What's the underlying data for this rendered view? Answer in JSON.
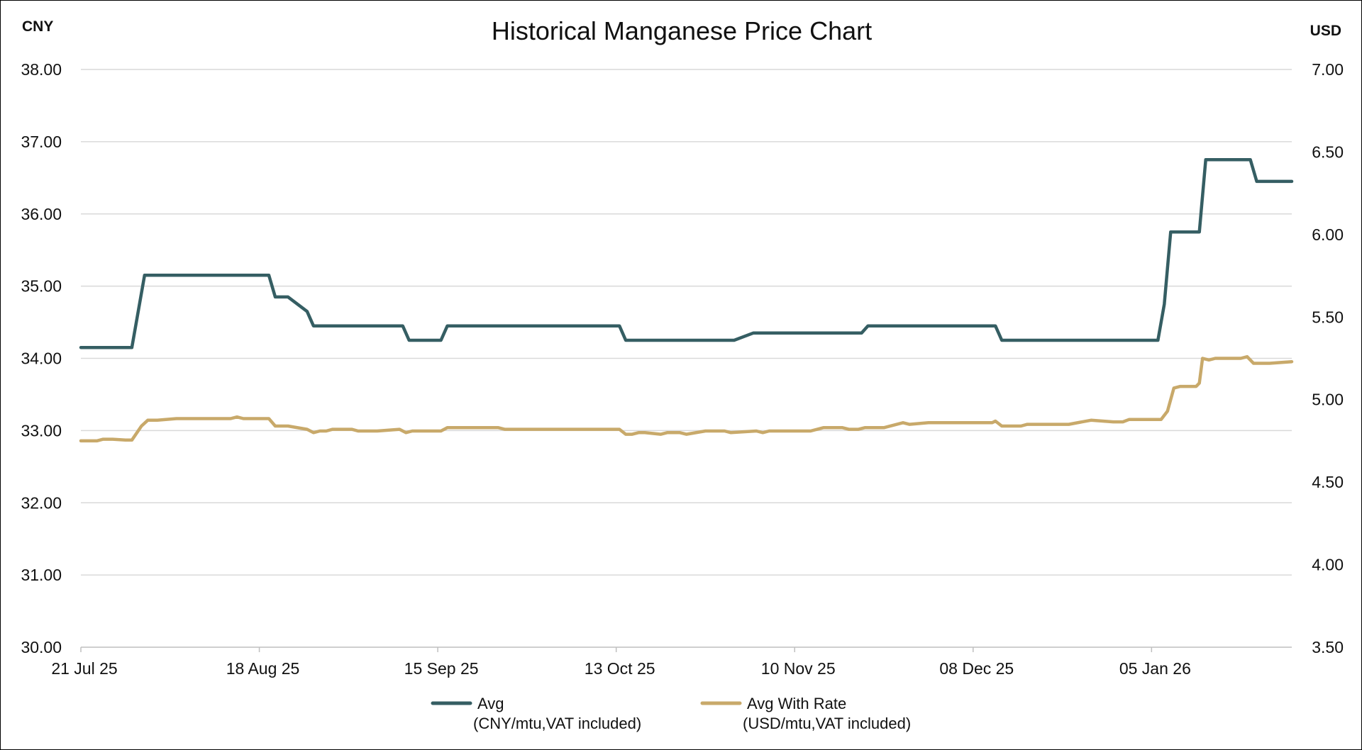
{
  "chart_data": {
    "type": "line",
    "title": "Historical Manganese Price Chart",
    "left_axis_label": "CNY",
    "right_axis_label": "USD",
    "left_ylim": [
      30.0,
      38.0
    ],
    "right_ylim": [
      3.5,
      7.0
    ],
    "left_ticks": [
      "30.00",
      "31.00",
      "32.00",
      "33.00",
      "34.00",
      "35.00",
      "36.00",
      "37.00",
      "38.00"
    ],
    "right_ticks": [
      "3.50",
      "4.00",
      "4.50",
      "5.00",
      "5.50",
      "6.00",
      "6.50",
      "7.00"
    ],
    "x_start_day": 0,
    "x_end_day": 190,
    "x_ticks": [
      {
        "day": 0,
        "label": "21 Jul 25"
      },
      {
        "day": 28,
        "label": "18 Aug 25"
      },
      {
        "day": 56,
        "label": "15 Sep 25"
      },
      {
        "day": 84,
        "label": "13 Oct 25"
      },
      {
        "day": 112,
        "label": "10 Nov 25"
      },
      {
        "day": 140,
        "label": "08 Dec 25"
      },
      {
        "day": 168,
        "label": "05 Jan 26"
      }
    ],
    "grid": true,
    "legend_position": "bottom",
    "series": [
      {
        "name": "Avg",
        "legend_line1": "Avg",
        "legend_line2": "(CNY/mtu,VAT included)",
        "axis": "left",
        "color": "#355e63",
        "points": [
          [
            0,
            34.15
          ],
          [
            8,
            34.15
          ],
          [
            10,
            35.15
          ],
          [
            29.5,
            35.15
          ],
          [
            30.5,
            34.85
          ],
          [
            32.5,
            34.85
          ],
          [
            35.5,
            34.65
          ],
          [
            36.5,
            34.45
          ],
          [
            50.5,
            34.45
          ],
          [
            51.5,
            34.25
          ],
          [
            56.5,
            34.25
          ],
          [
            57.5,
            34.45
          ],
          [
            84.5,
            34.45
          ],
          [
            85.5,
            34.25
          ],
          [
            102.5,
            34.25
          ],
          [
            105.5,
            34.35
          ],
          [
            122.5,
            34.35
          ],
          [
            123.5,
            34.45
          ],
          [
            143.5,
            34.45
          ],
          [
            144.5,
            34.25
          ],
          [
            169,
            34.25
          ],
          [
            170,
            34.75
          ],
          [
            171,
            35.75
          ],
          [
            175.5,
            35.75
          ],
          [
            176.5,
            36.75
          ],
          [
            183.5,
            36.75
          ],
          [
            184.5,
            36.45
          ],
          [
            190,
            36.45
          ]
        ]
      },
      {
        "name": "Avg With Rate",
        "legend_line1": "Avg With Rate",
        "legend_line2": "(USD/mtu,VAT included)",
        "axis": "right",
        "color": "#c8a96a",
        "points": [
          [
            0,
            4.75
          ],
          [
            2.5,
            4.75
          ],
          [
            3.5,
            4.76
          ],
          [
            5,
            4.76
          ],
          [
            7,
            4.755
          ],
          [
            8,
            4.755
          ],
          [
            9.5,
            4.84
          ],
          [
            10.5,
            4.875
          ],
          [
            12,
            4.875
          ],
          [
            15,
            4.885
          ],
          [
            23.5,
            4.885
          ],
          [
            24.5,
            4.895
          ],
          [
            25.5,
            4.885
          ],
          [
            29.5,
            4.885
          ],
          [
            30.5,
            4.84
          ],
          [
            32.5,
            4.84
          ],
          [
            35.5,
            4.82
          ],
          [
            36.5,
            4.8
          ],
          [
            37.5,
            4.81
          ],
          [
            38.5,
            4.81
          ],
          [
            39.5,
            4.82
          ],
          [
            42.5,
            4.82
          ],
          [
            43.5,
            4.81
          ],
          [
            46.5,
            4.81
          ],
          [
            50,
            4.82
          ],
          [
            51,
            4.8
          ],
          [
            52,
            4.81
          ],
          [
            56.5,
            4.81
          ],
          [
            57.5,
            4.83
          ],
          [
            65.5,
            4.83
          ],
          [
            66.5,
            4.82
          ],
          [
            84.5,
            4.82
          ],
          [
            85.5,
            4.79
          ],
          [
            86.5,
            4.79
          ],
          [
            87.5,
            4.8
          ],
          [
            88.5,
            4.8
          ],
          [
            91,
            4.79
          ],
          [
            92,
            4.8
          ],
          [
            94,
            4.8
          ],
          [
            95,
            4.79
          ],
          [
            98,
            4.81
          ],
          [
            101,
            4.81
          ],
          [
            102,
            4.8
          ],
          [
            106,
            4.81
          ],
          [
            107,
            4.8
          ],
          [
            108,
            4.81
          ],
          [
            114.5,
            4.81
          ],
          [
            116.5,
            4.83
          ],
          [
            119.5,
            4.83
          ],
          [
            120.5,
            4.82
          ],
          [
            122,
            4.82
          ],
          [
            123,
            4.83
          ],
          [
            126,
            4.83
          ],
          [
            129,
            4.86
          ],
          [
            130,
            4.85
          ],
          [
            133,
            4.86
          ],
          [
            143,
            4.86
          ],
          [
            143.5,
            4.87
          ],
          [
            144.5,
            4.84
          ],
          [
            147.5,
            4.84
          ],
          [
            148.5,
            4.85
          ],
          [
            155,
            4.85
          ],
          [
            158.5,
            4.875
          ],
          [
            162,
            4.865
          ],
          [
            163.5,
            4.865
          ],
          [
            164.5,
            4.88
          ],
          [
            169.5,
            4.88
          ],
          [
            170.5,
            4.93
          ],
          [
            171.5,
            5.07
          ],
          [
            172.5,
            5.08
          ],
          [
            175,
            5.08
          ],
          [
            175.5,
            5.1
          ],
          [
            176,
            5.25
          ],
          [
            177,
            5.24
          ],
          [
            178,
            5.25
          ],
          [
            182,
            5.25
          ],
          [
            183,
            5.26
          ],
          [
            184,
            5.22
          ],
          [
            186.5,
            5.22
          ],
          [
            190,
            5.23
          ]
        ]
      }
    ]
  }
}
